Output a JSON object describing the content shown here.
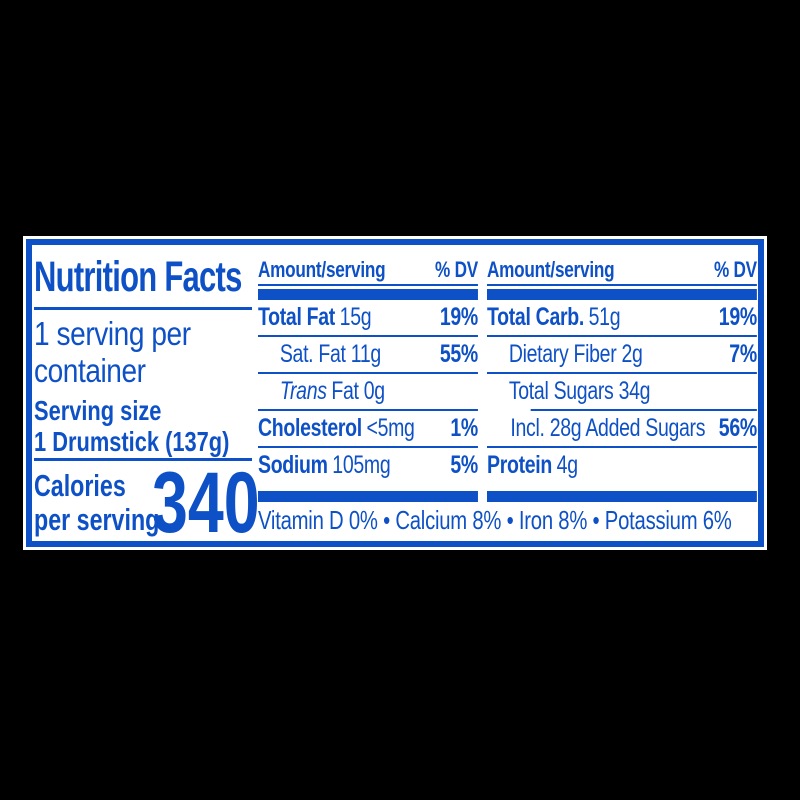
{
  "colors": {
    "accent_blue": "#0e51c6",
    "panel_bg": "#ffffff",
    "page_bg": "#000000"
  },
  "left": {
    "title": "Nutrition Facts",
    "servings_per_container": "1 serving per container",
    "serving_size_label": "Serving size",
    "serving_size_value": "1 Drumstick (137g)",
    "calories_label_line1": "Calories",
    "calories_label_line2": "per serving",
    "calories_value": "340"
  },
  "columns": [
    {
      "header_amount": "Amount/serving",
      "header_dv": "% DV",
      "rows": [
        {
          "bold": "Total Fat",
          "rest": "15g",
          "pct": "19%"
        },
        {
          "rest": "Sat. Fat 11g",
          "pct": "55%"
        },
        {
          "italic": "Trans",
          "rest": "Fat 0g",
          "pct": ""
        },
        {
          "bold": "Cholesterol",
          "rest": "<5mg",
          "pct": "1%"
        },
        {
          "bold": "Sodium",
          "rest": "105mg",
          "pct": "5%"
        }
      ]
    },
    {
      "header_amount": "Amount/serving",
      "header_dv": "% DV",
      "rows": [
        {
          "bold": "Total Carb.",
          "rest": "51g",
          "pct": "19%"
        },
        {
          "rest": "Dietary Fiber 2g",
          "pct": "7%"
        },
        {
          "rest": "Total Sugars 34g",
          "pct": ""
        },
        {
          "rest": "Incl. 28g Added Sugars",
          "pct": "56%"
        },
        {
          "bold": "Protein",
          "rest": "4g",
          "pct": ""
        }
      ]
    }
  ],
  "footer": "Vitamin D 0% • Calcium 8% • Iron 8% • Potassium 6%"
}
